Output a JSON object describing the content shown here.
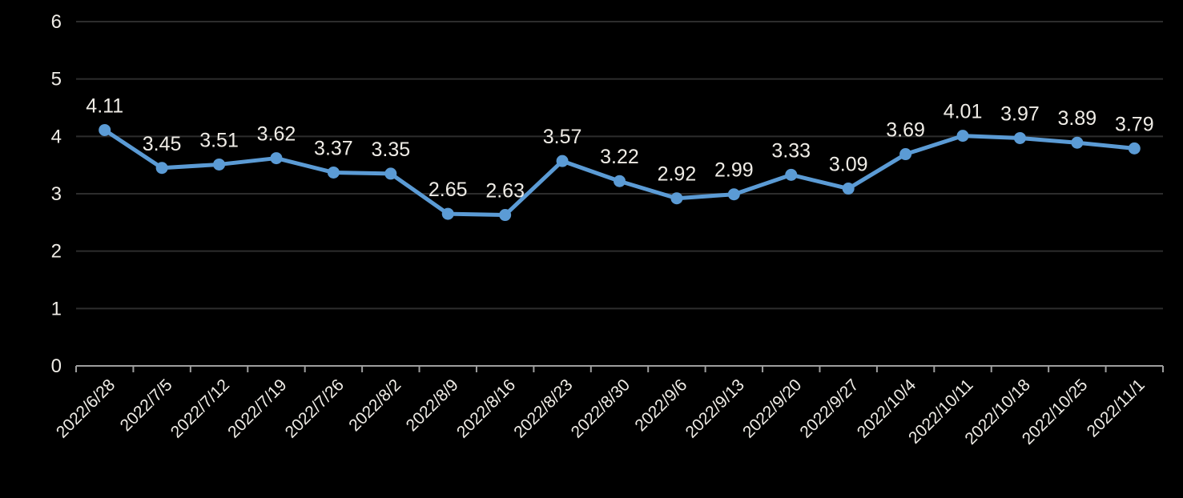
{
  "chart_data": {
    "type": "line",
    "title": "",
    "xlabel": "",
    "ylabel": "",
    "categories": [
      "2022/6/28",
      "2022/7/5",
      "2022/7/12",
      "2022/7/19",
      "2022/7/26",
      "2022/8/2",
      "2022/8/9",
      "2022/8/16",
      "2022/8/23",
      "2022/8/30",
      "2022/9/6",
      "2022/9/13",
      "2022/9/20",
      "2022/9/27",
      "2022/10/4",
      "2022/10/11",
      "2022/10/18",
      "2022/10/25",
      "2022/11/1"
    ],
    "values": [
      4.11,
      3.45,
      3.51,
      3.62,
      3.37,
      3.35,
      2.65,
      2.63,
      3.57,
      3.22,
      2.92,
      2.99,
      3.33,
      3.09,
      3.69,
      4.01,
      3.97,
      3.89,
      3.79
    ],
    "data_labels": [
      "4.11",
      "3.45",
      "3.51",
      "3.62",
      "3.37",
      "3.35",
      "2.65",
      "2.63",
      "3.57",
      "3.22",
      "2.92",
      "2.99",
      "3.33",
      "3.09",
      "3.69",
      "4.01",
      "3.97",
      "3.89",
      "3.79"
    ],
    "y_ticks": [
      0,
      1,
      2,
      3,
      4,
      5,
      6
    ],
    "ylim": [
      0,
      6
    ],
    "grid": true,
    "legend_position": "none",
    "colors": {
      "background": "#000000",
      "series_line": "#5b9bd5",
      "marker": "#5b9bd5",
      "data_label_text": "#efece6",
      "axis_tick_text": "#efece6",
      "axis_line": "#9e9e9e",
      "gridline": "#2d2d2d"
    }
  }
}
